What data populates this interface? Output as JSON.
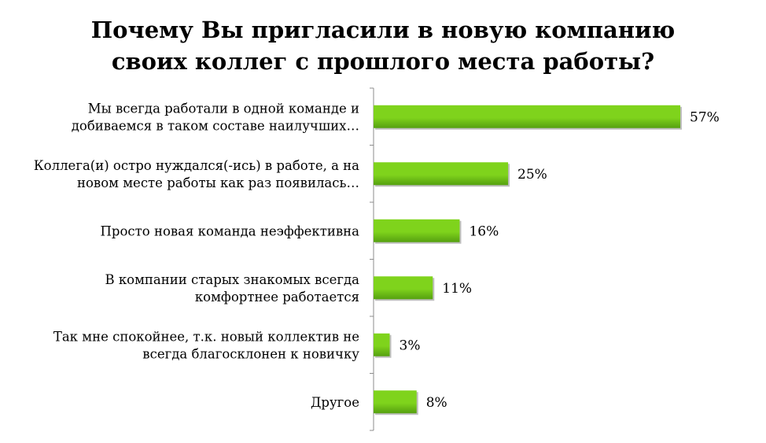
{
  "chart_data": {
    "type": "bar",
    "orientation": "horizontal",
    "title": [
      "Почему Вы пригласили в новую компанию",
      "своих коллег с прошлого места работы?"
    ],
    "categories": [
      [
        "Мы всегда работали в одной команде и",
        "добиваемся в таком составе наилучших…"
      ],
      [
        "Коллега(и) остро нуждался(-ись) в работе, а на",
        "новом месте работы как раз появилась…"
      ],
      [
        "Просто новая команда неэффективна"
      ],
      [
        "В компании старых знакомых всегда",
        "комфортнее работается"
      ],
      [
        "Так мне спокойнее, т.к. новый коллектив не",
        "всегда благосклонен к новичку"
      ],
      [
        "Другое"
      ]
    ],
    "values": [
      57,
      25,
      16,
      11,
      3,
      8
    ],
    "value_labels": [
      "57%",
      "25%",
      "16%",
      "11%",
      "3%",
      "8%"
    ],
    "xlim": [
      0,
      57
    ],
    "grid": false,
    "bar_color": "#7FD31C",
    "bar_color_dark": "#55A010"
  }
}
